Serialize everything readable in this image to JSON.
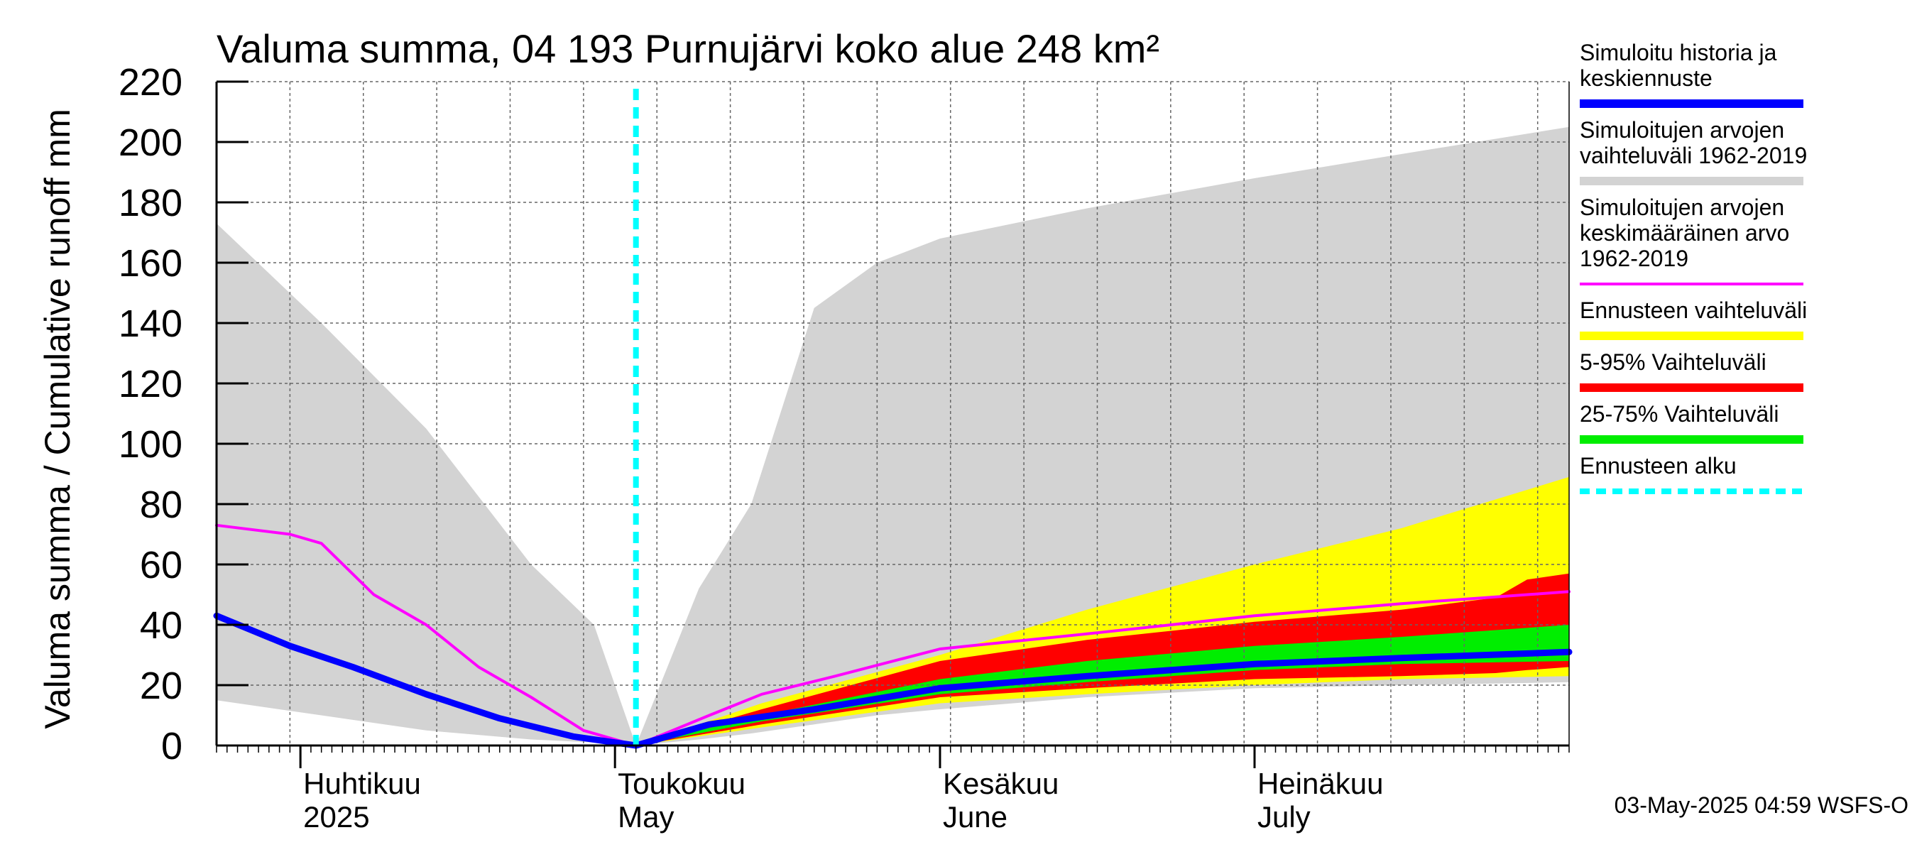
{
  "chart_data": {
    "type": "area",
    "title": "Valuma summa, 04 193 Purnujärvi koko alue 248 km²",
    "ylabel": "Valuma summa / Cumulative runoff    mm",
    "ylim": [
      0,
      220
    ],
    "yticks": [
      0,
      20,
      40,
      60,
      80,
      100,
      120,
      140,
      160,
      180,
      200,
      220
    ],
    "xlim": [
      "2025-03-24",
      "2025-07-31"
    ],
    "grid": true,
    "month_labels": [
      {
        "date": "2025-04-01",
        "line1": "Huhtikuu",
        "line2": "2025"
      },
      {
        "date": "2025-05-01",
        "line1": "Toukokuu",
        "line2": "May"
      },
      {
        "date": "2025-06-01",
        "line1": "Kesäkuu",
        "line2": "June"
      },
      {
        "date": "2025-07-01",
        "line1": "Heinäkuu",
        "line2": "July"
      }
    ],
    "forecast_start": "2025-05-03",
    "series": [
      {
        "name": "Simuloitujen arvojen vaihteluväli 1962-2019",
        "kind": "band",
        "color": "#d3d3d3",
        "x": [
          "2025-03-24",
          "2025-04-03",
          "2025-04-13",
          "2025-04-23",
          "2025-04-29",
          "2025-05-03",
          "2025-05-09",
          "2025-05-14",
          "2025-05-20",
          "2025-05-26",
          "2025-06-01",
          "2025-06-15",
          "2025-07-01",
          "2025-07-15",
          "2025-07-31"
        ],
        "upper": [
          173,
          140,
          105,
          60,
          40,
          0,
          52,
          80,
          145,
          160,
          168,
          178,
          188,
          196,
          205
        ],
        "lower": [
          15,
          10,
          5,
          2,
          1,
          0,
          2,
          4,
          7,
          10,
          12,
          16,
          19,
          20,
          21
        ]
      },
      {
        "name": "Ennusteen vaihteluväli",
        "kind": "band",
        "color": "#ffff00",
        "x": [
          "2025-05-03",
          "2025-05-15",
          "2025-06-01",
          "2025-06-15",
          "2025-07-01",
          "2025-07-15",
          "2025-07-31"
        ],
        "upper": [
          0,
          14,
          30,
          45,
          60,
          72,
          89
        ],
        "lower": [
          0,
          6,
          14,
          17,
          20,
          22,
          23
        ]
      },
      {
        "name": "5-95% Vaihteluväli",
        "kind": "band",
        "color": "#ff0000",
        "x": [
          "2025-05-03",
          "2025-05-15",
          "2025-06-01",
          "2025-06-15",
          "2025-07-01",
          "2025-07-15",
          "2025-07-24",
          "2025-07-27",
          "2025-07-31"
        ],
        "upper": [
          0,
          12,
          28,
          35,
          41,
          45,
          49,
          55,
          57
        ],
        "lower": [
          0,
          7,
          16,
          19,
          22,
          23,
          24,
          25,
          26
        ]
      },
      {
        "name": "25-75% Vaihteluväli",
        "kind": "band",
        "color": "#00ee00",
        "x": [
          "2025-05-03",
          "2025-05-15",
          "2025-06-01",
          "2025-06-15",
          "2025-07-01",
          "2025-07-15",
          "2025-07-31"
        ],
        "upper": [
          0,
          10,
          22,
          28,
          33,
          36,
          40
        ],
        "lower": [
          0,
          8,
          17,
          21,
          25,
          27,
          28
        ]
      },
      {
        "name": "Simuloitujen arvojen keskimääräinen arvo 1962-2019",
        "kind": "line",
        "color": "#ff00ff",
        "width": 4,
        "x": [
          "2025-03-24",
          "2025-03-31",
          "2025-04-03",
          "2025-04-08",
          "2025-04-13",
          "2025-04-18",
          "2025-04-23",
          "2025-04-28",
          "2025-05-03",
          "2025-05-10",
          "2025-05-15",
          "2025-05-22",
          "2025-06-01",
          "2025-06-15",
          "2025-07-01",
          "2025-07-15",
          "2025-07-31"
        ],
        "y": [
          73,
          70,
          67,
          50,
          40,
          26,
          16,
          5,
          0,
          10,
          17,
          23,
          32,
          37,
          43,
          47,
          51
        ]
      },
      {
        "name": "Simuloitu historia ja keskiennuste",
        "kind": "line",
        "color": "#0000ff",
        "width": 9,
        "x": [
          "2025-03-24",
          "2025-03-31",
          "2025-04-06",
          "2025-04-13",
          "2025-04-20",
          "2025-04-27",
          "2025-05-03",
          "2025-05-10",
          "2025-05-20",
          "2025-06-01",
          "2025-06-15",
          "2025-07-01",
          "2025-07-15",
          "2025-07-31"
        ],
        "y": [
          43,
          33,
          26,
          17,
          9,
          3,
          0,
          7,
          12,
          19,
          23,
          27,
          29,
          31
        ]
      }
    ]
  },
  "legend": [
    {
      "lines": [
        "Simuloitu historia ja",
        "keskiennuste"
      ],
      "color": "#0000ff",
      "style": "solid"
    },
    {
      "lines": [
        "Simuloitujen arvojen",
        "vaihteluväli 1962-2019"
      ],
      "color": "#d3d3d3",
      "style": "solid"
    },
    {
      "lines": [
        "Simuloitujen arvojen",
        "keskimääräinen arvo",
        "   1962-2019"
      ],
      "color": "#ff00ff",
      "style": "thin"
    },
    {
      "lines": [
        "Ennusteen vaihteluväli"
      ],
      "color": "#ffff00",
      "style": "solid"
    },
    {
      "lines": [
        "5-95% Vaihteluväli"
      ],
      "color": "#ff0000",
      "style": "solid"
    },
    {
      "lines": [
        "25-75% Vaihteluväli"
      ],
      "color": "#00ee00",
      "style": "solid"
    },
    {
      "lines": [
        "Ennusteen alku"
      ],
      "color": "#00ffff",
      "style": "dashed"
    }
  ],
  "footer": "03-May-2025 04:59 WSFS-O"
}
